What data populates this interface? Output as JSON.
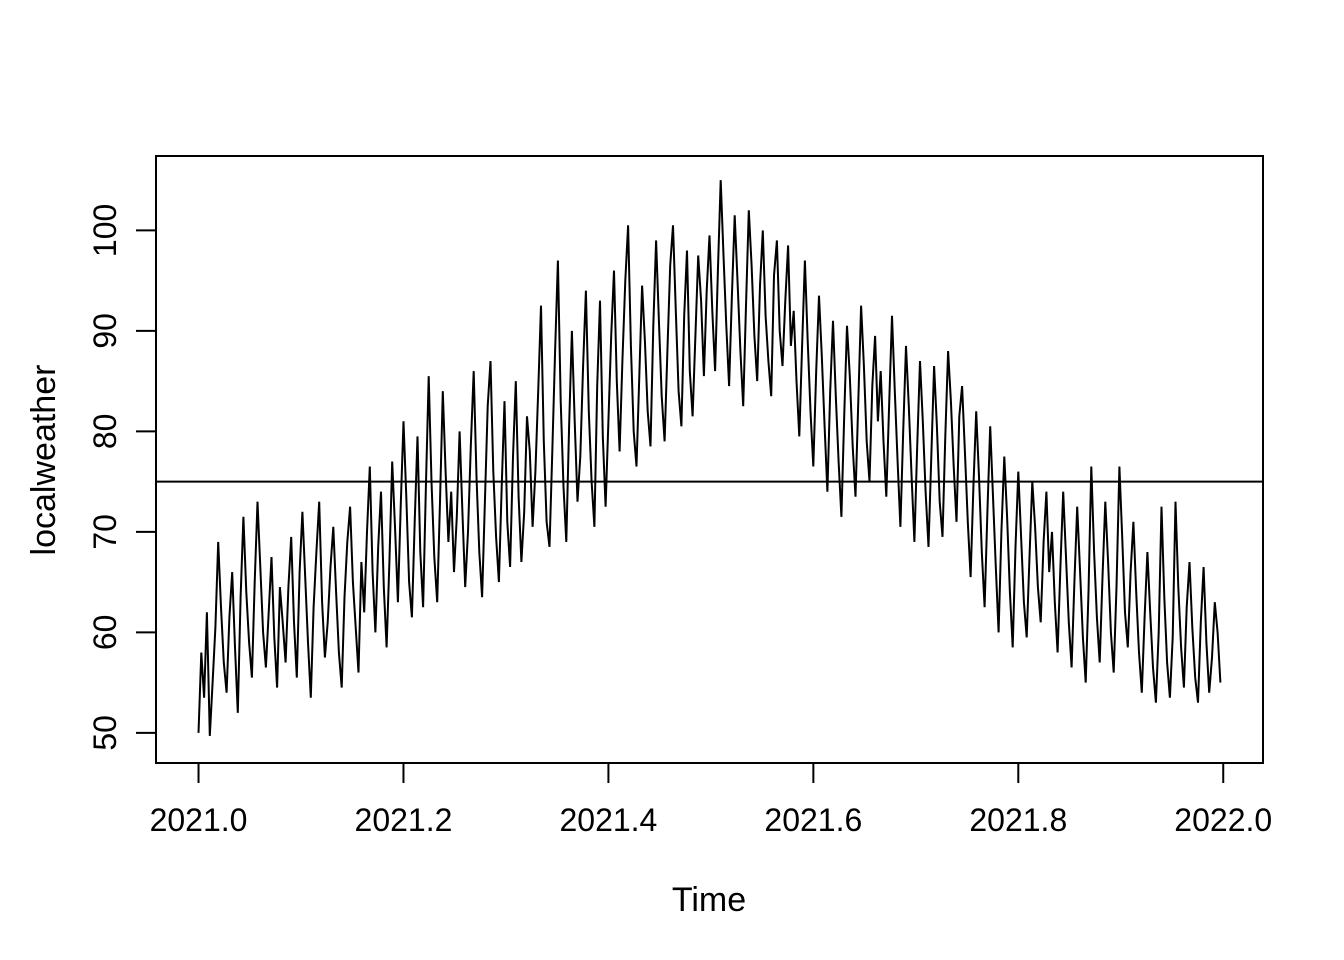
{
  "figure": {
    "background": "#ffffff",
    "axis_color": "#000000",
    "series_color": "#000000",
    "ref_line_color": "#000000"
  },
  "chart_data": {
    "type": "line",
    "title": "",
    "xlabel": "Time",
    "ylabel": "localweather",
    "grid": false,
    "legend": false,
    "xlim": [
      2020.9585,
      2022.0388
    ],
    "ylim": [
      47.0,
      107.4
    ],
    "x_ticks": [
      2021.0,
      2021.2,
      2021.4,
      2021.6,
      2021.8,
      2022.0
    ],
    "x_tick_labels": [
      "2021.0",
      "2021.2",
      "2021.4",
      "2021.6",
      "2021.8",
      "2022.0"
    ],
    "y_ticks": [
      50,
      60,
      70,
      80,
      90,
      100
    ],
    "y_tick_labels": [
      "50",
      "60",
      "70",
      "80",
      "90",
      "100"
    ],
    "hline": 75,
    "x_start": 2021.0,
    "x_step": 0.0027397,
    "n_points": 365,
    "series": [
      {
        "name": "localweather",
        "values": [
          50,
          58,
          53.5,
          62,
          49.7,
          55,
          60.5,
          69,
          62.5,
          57,
          54,
          61.5,
          66,
          58.5,
          52,
          63.5,
          71.5,
          64,
          59,
          55.5,
          65,
          73,
          66.5,
          60,
          56.5,
          62,
          67.5,
          59.5,
          54.5,
          64.5,
          61,
          57,
          64.5,
          69.5,
          61,
          55.5,
          66,
          72,
          65.5,
          59,
          53.5,
          62.5,
          68,
          73,
          63,
          57.5,
          61,
          66.5,
          70.5,
          64,
          58,
          54.5,
          63.5,
          69,
          72.5,
          65,
          60.5,
          56,
          67,
          62,
          70,
          76.5,
          66,
          60,
          68.5,
          74,
          64.5,
          58.5,
          67,
          77,
          70.5,
          63,
          72.5,
          81,
          73.5,
          65,
          61.5,
          71,
          79.5,
          68,
          62.5,
          74.5,
          85.5,
          75,
          67.5,
          63,
          73,
          84,
          76,
          69,
          74,
          66,
          71.5,
          80,
          72,
          64.5,
          70,
          78.5,
          86,
          75.5,
          68,
          63.5,
          73,
          82.5,
          87,
          76,
          69.5,
          65,
          74.5,
          83,
          71,
          66.5,
          77.5,
          85,
          73.5,
          67,
          72,
          81.5,
          78,
          70.5,
          76,
          84,
          92.5,
          79,
          71,
          68.5,
          78,
          88,
          97,
          83,
          74.5,
          69,
          80.5,
          90,
          81,
          73,
          77.5,
          86.5,
          94,
          82,
          75,
          70.5,
          84.5,
          93,
          79.5,
          72.5,
          81,
          89.5,
          96,
          85,
          78,
          87,
          95,
          100.5,
          88.5,
          80,
          76.5,
          85.5,
          94.5,
          89,
          82,
          78.5,
          90.5,
          99,
          91,
          83.5,
          79,
          88,
          96.5,
          100.5,
          92,
          84,
          80.5,
          91.5,
          98,
          86,
          81.5,
          89.5,
          97.5,
          93,
          85.5,
          94,
          99.5,
          92,
          86,
          96,
          105,
          97.5,
          90.5,
          84.5,
          93.5,
          101.5,
          95,
          88,
          82.5,
          92.5,
          102,
          96.5,
          89.5,
          85,
          94.5,
          100,
          91.5,
          87,
          83.5,
          95.5,
          99,
          90,
          86.5,
          93,
          98.5,
          88.5,
          92,
          85,
          79.5,
          88.5,
          97,
          89,
          82,
          76.5,
          86,
          93.5,
          87.5,
          80.5,
          74,
          84,
          91,
          83.5,
          77,
          71.5,
          81.5,
          90.5,
          85.5,
          78.5,
          73.5,
          83,
          92.5,
          86.5,
          79,
          75,
          84.5,
          89.5,
          81,
          86,
          79,
          73.5,
          82.5,
          91.5,
          84,
          77,
          70.5,
          80,
          88.5,
          82.5,
          75.5,
          69,
          78.5,
          87,
          81,
          74,
          68.5,
          77.5,
          86.5,
          80.5,
          73,
          69.5,
          79.5,
          88,
          83,
          76.5,
          71,
          81.5,
          84.5,
          78,
          71,
          65.5,
          74.5,
          82,
          75.5,
          68,
          62.5,
          72,
          80.5,
          73.5,
          66.5,
          60,
          70,
          77.5,
          71.5,
          64,
          58.5,
          68.5,
          76,
          69.5,
          63,
          59.5,
          67.5,
          75,
          70.5,
          64.5,
          61,
          69,
          74,
          66,
          70,
          63,
          58,
          66.5,
          74,
          67.5,
          61,
          56.5,
          65,
          72.5,
          66,
          59.5,
          55,
          64,
          76.5,
          68,
          61.5,
          57,
          65.5,
          73,
          67,
          60,
          56,
          64.5,
          76.5,
          69.5,
          62,
          58.5,
          66,
          71,
          64,
          58,
          54,
          61.5,
          68,
          62,
          56.5,
          53,
          60,
          72.5,
          63.5,
          57,
          53.5,
          59.5,
          73,
          64.5,
          58.5,
          54.5,
          62.5,
          67,
          60.5,
          55.5,
          53,
          61,
          66.5,
          59,
          54,
          57.5,
          63,
          60,
          55
        ]
      }
    ]
  }
}
